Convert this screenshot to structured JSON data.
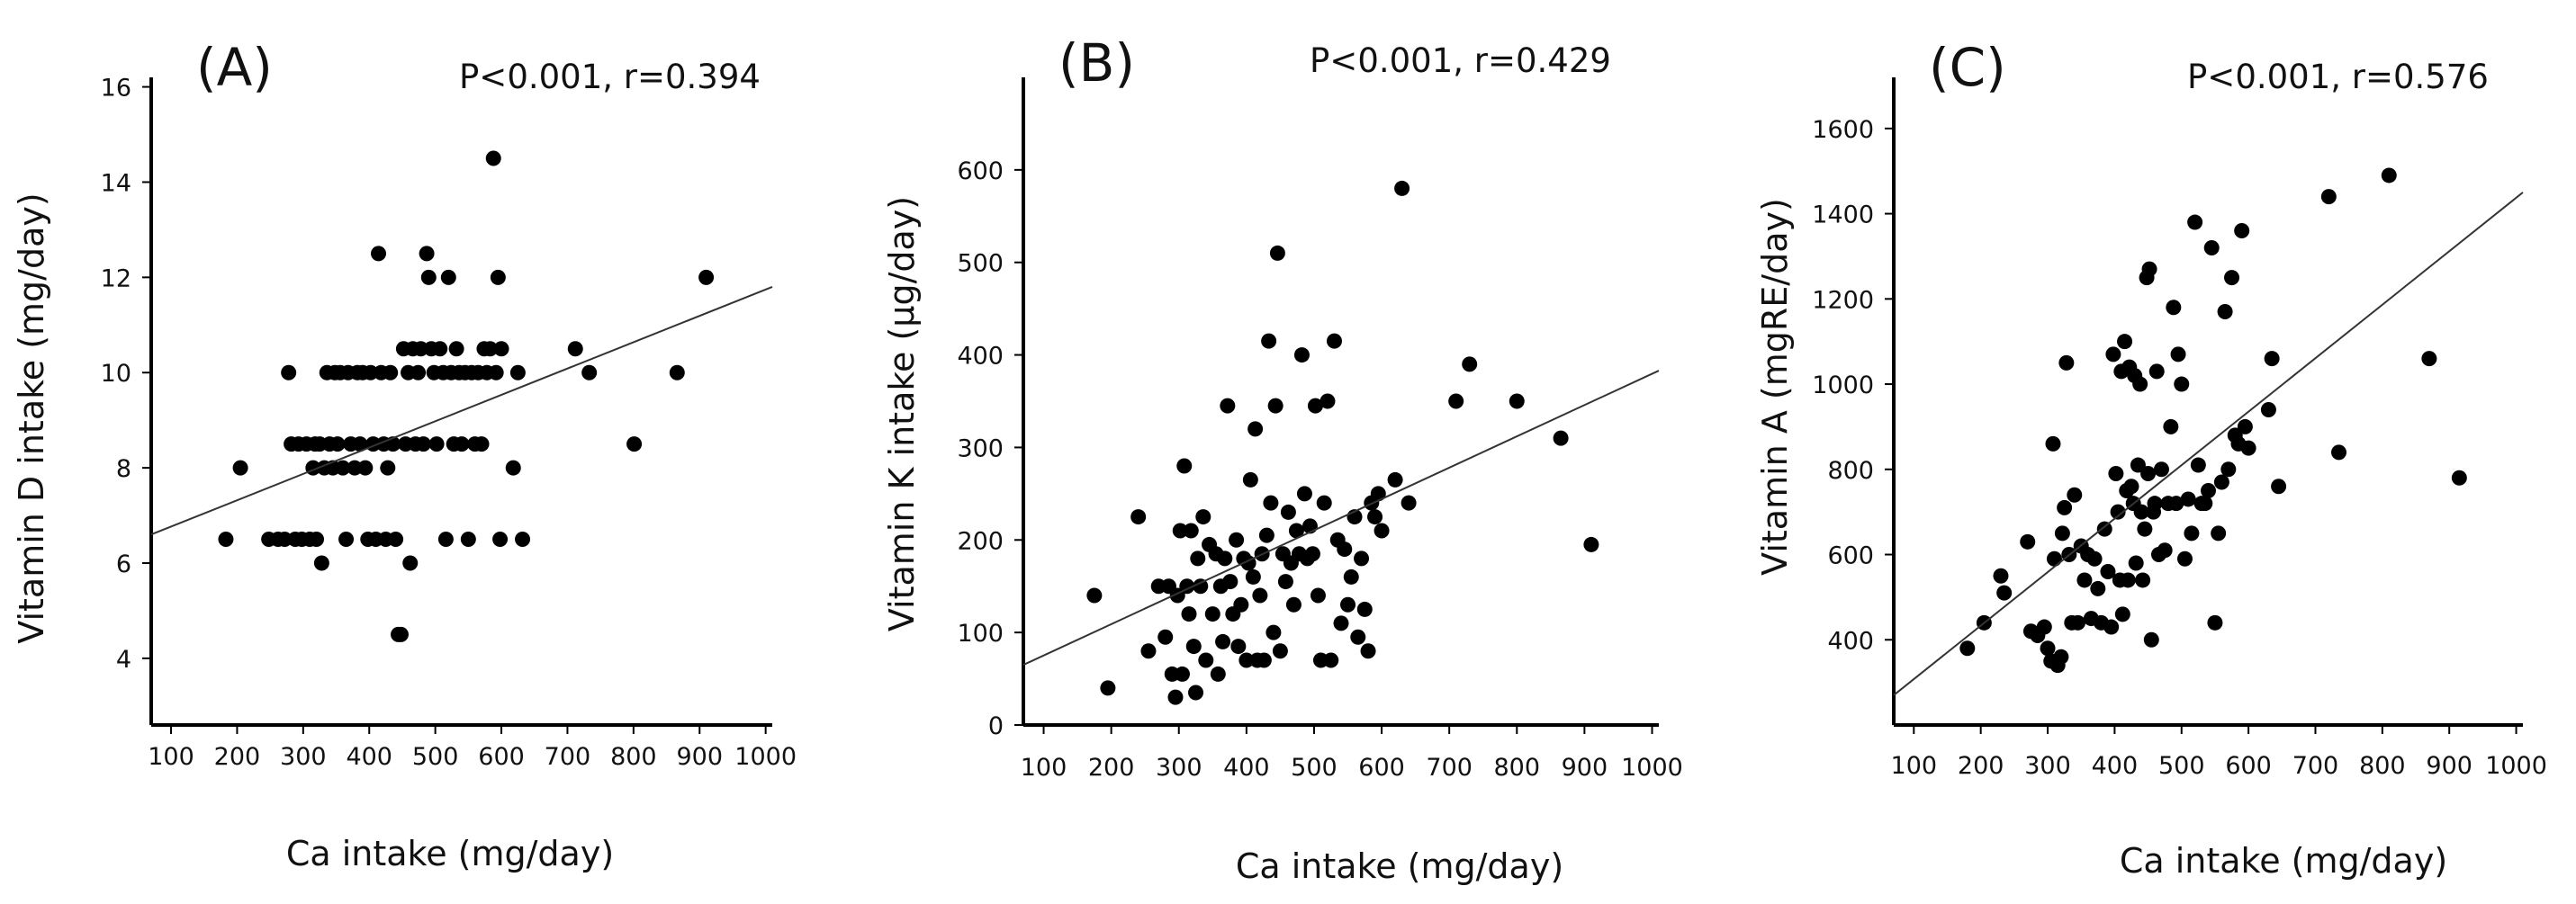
{
  "figure": {
    "background": "#ffffff",
    "ink_color": "#000000",
    "panels": [
      "A",
      "B",
      "C"
    ]
  },
  "chart_data": [
    {
      "type": "scatter",
      "panel": "(A)",
      "stat_text": "P<0.001, r=0.394",
      "xlabel": "Ca intake (mg/day)",
      "ylabel": "Vitamin D intake (mg/day)",
      "xlim": [
        70,
        1010
      ],
      "ylim": [
        2.6,
        16.2
      ],
      "xticks": [
        100,
        200,
        300,
        400,
        500,
        600,
        700,
        800,
        900,
        1000
      ],
      "yticks": [
        4,
        6,
        8,
        10,
        12,
        14,
        16
      ],
      "trendline": {
        "x": [
          70,
          1010
        ],
        "y": [
          6.6,
          11.8
        ]
      },
      "points": [
        [
          183,
          6.5
        ],
        [
          205,
          8.0
        ],
        [
          248,
          6.5
        ],
        [
          262,
          6.5
        ],
        [
          272,
          6.5
        ],
        [
          278,
          10.0
        ],
        [
          282,
          8.5
        ],
        [
          288,
          6.5
        ],
        [
          293,
          8.5
        ],
        [
          298,
          6.5
        ],
        [
          305,
          8.5
        ],
        [
          310,
          6.5
        ],
        [
          315,
          8.0
        ],
        [
          318,
          8.5
        ],
        [
          320,
          6.5
        ],
        [
          325,
          8.5
        ],
        [
          328,
          6.0
        ],
        [
          332,
          8.0
        ],
        [
          336,
          10.0
        ],
        [
          340,
          8.5
        ],
        [
          345,
          8.0
        ],
        [
          348,
          10.0
        ],
        [
          352,
          8.5
        ],
        [
          356,
          10.0
        ],
        [
          360,
          8.0
        ],
        [
          365,
          6.5
        ],
        [
          368,
          10.0
        ],
        [
          372,
          8.5
        ],
        [
          378,
          8.0
        ],
        [
          382,
          10.0
        ],
        [
          386,
          8.5
        ],
        [
          390,
          10.0
        ],
        [
          394,
          8.0
        ],
        [
          398,
          6.5
        ],
        [
          402,
          10.0
        ],
        [
          406,
          8.5
        ],
        [
          410,
          6.5
        ],
        [
          414,
          12.5
        ],
        [
          418,
          10.0
        ],
        [
          422,
          8.5
        ],
        [
          425,
          6.5
        ],
        [
          428,
          8.0
        ],
        [
          432,
          10.0
        ],
        [
          436,
          8.5
        ],
        [
          440,
          6.5
        ],
        [
          444,
          4.5
        ],
        [
          448,
          4.5
        ],
        [
          452,
          10.5
        ],
        [
          455,
          8.5
        ],
        [
          459,
          10.0
        ],
        [
          462,
          6.0
        ],
        [
          466,
          10.5
        ],
        [
          470,
          8.5
        ],
        [
          474,
          10.0
        ],
        [
          478,
          10.5
        ],
        [
          482,
          8.5
        ],
        [
          487,
          12.5
        ],
        [
          490,
          12.0
        ],
        [
          494,
          10.5
        ],
        [
          498,
          10.0
        ],
        [
          502,
          8.5
        ],
        [
          507,
          10.5
        ],
        [
          512,
          10.0
        ],
        [
          516,
          6.5
        ],
        [
          520,
          12.0
        ],
        [
          524,
          10.0
        ],
        [
          528,
          8.5
        ],
        [
          532,
          10.5
        ],
        [
          536,
          10.0
        ],
        [
          540,
          8.5
        ],
        [
          545,
          10.0
        ],
        [
          550,
          6.5
        ],
        [
          555,
          10.0
        ],
        [
          560,
          8.5
        ],
        [
          565,
          10.0
        ],
        [
          570,
          8.5
        ],
        [
          574,
          10.5
        ],
        [
          578,
          10.0
        ],
        [
          583,
          10.5
        ],
        [
          588,
          14.5
        ],
        [
          592,
          10.0
        ],
        [
          595,
          12.0
        ],
        [
          598,
          6.5
        ],
        [
          600,
          10.5
        ],
        [
          618,
          8.0
        ],
        [
          625,
          10.0
        ],
        [
          632,
          6.5
        ],
        [
          712,
          10.5
        ],
        [
          733,
          10.0
        ],
        [
          801,
          8.5
        ],
        [
          866,
          10.0
        ],
        [
          910,
          12.0
        ]
      ]
    },
    {
      "type": "scatter",
      "panel": "(B)",
      "stat_text": "P<0.001, r=0.429",
      "xlabel": "Ca intake (mg/day)",
      "ylabel": "Vitamin K intake (μg/day)",
      "xlim": [
        70,
        1010
      ],
      "ylim": [
        0,
        700
      ],
      "xticks": [
        100,
        200,
        300,
        400,
        500,
        600,
        700,
        800,
        900,
        1000
      ],
      "yticks": [
        0,
        100,
        200,
        300,
        400,
        500,
        600
      ],
      "trendline": {
        "x": [
          70,
          1010
        ],
        "y": [
          65,
          383
        ]
      },
      "points": [
        [
          175,
          140
        ],
        [
          195,
          40
        ],
        [
          240,
          225
        ],
        [
          255,
          80
        ],
        [
          270,
          150
        ],
        [
          280,
          95
        ],
        [
          285,
          150
        ],
        [
          290,
          55
        ],
        [
          295,
          30
        ],
        [
          298,
          140
        ],
        [
          302,
          210
        ],
        [
          305,
          55
        ],
        [
          308,
          280
        ],
        [
          312,
          150
        ],
        [
          315,
          120
        ],
        [
          318,
          210
        ],
        [
          322,
          85
        ],
        [
          325,
          35
        ],
        [
          328,
          180
        ],
        [
          332,
          150
        ],
        [
          336,
          225
        ],
        [
          340,
          70
        ],
        [
          345,
          195
        ],
        [
          350,
          120
        ],
        [
          355,
          185
        ],
        [
          358,
          55
        ],
        [
          362,
          150
        ],
        [
          365,
          90
        ],
        [
          368,
          180
        ],
        [
          372,
          345
        ],
        [
          376,
          155
        ],
        [
          380,
          120
        ],
        [
          385,
          200
        ],
        [
          388,
          85
        ],
        [
          392,
          130
        ],
        [
          396,
          180
        ],
        [
          400,
          70
        ],
        [
          403,
          175
        ],
        [
          406,
          265
        ],
        [
          410,
          160
        ],
        [
          413,
          320
        ],
        [
          416,
          70
        ],
        [
          420,
          140
        ],
        [
          423,
          185
        ],
        [
          426,
          70
        ],
        [
          430,
          205
        ],
        [
          433,
          415
        ],
        [
          436,
          240
        ],
        [
          440,
          100
        ],
        [
          443,
          345
        ],
        [
          446,
          510
        ],
        [
          450,
          80
        ],
        [
          454,
          185
        ],
        [
          458,
          155
        ],
        [
          462,
          230
        ],
        [
          466,
          175
        ],
        [
          470,
          130
        ],
        [
          474,
          210
        ],
        [
          478,
          185
        ],
        [
          482,
          400
        ],
        [
          486,
          250
        ],
        [
          490,
          180
        ],
        [
          494,
          215
        ],
        [
          498,
          185
        ],
        [
          502,
          345
        ],
        [
          506,
          140
        ],
        [
          510,
          70
        ],
        [
          515,
          240
        ],
        [
          520,
          350
        ],
        [
          525,
          70
        ],
        [
          530,
          415
        ],
        [
          535,
          200
        ],
        [
          540,
          110
        ],
        [
          545,
          190
        ],
        [
          550,
          130
        ],
        [
          555,
          160
        ],
        [
          560,
          225
        ],
        [
          565,
          95
        ],
        [
          570,
          180
        ],
        [
          575,
          125
        ],
        [
          580,
          80
        ],
        [
          585,
          240
        ],
        [
          590,
          225
        ],
        [
          595,
          250
        ],
        [
          600,
          210
        ],
        [
          620,
          265
        ],
        [
          630,
          580
        ],
        [
          640,
          240
        ],
        [
          710,
          350
        ],
        [
          730,
          390
        ],
        [
          800,
          350
        ],
        [
          865,
          310
        ],
        [
          910,
          195
        ]
      ]
    },
    {
      "type": "scatter",
      "panel": "(C)",
      "stat_text": "P<0.001, r=0.576",
      "xlabel": "Ca intake (mg/day)",
      "ylabel": "Vitamin A (mgRE/day)",
      "xlim": [
        70,
        1010
      ],
      "ylim": [
        200,
        1720
      ],
      "xticks": [
        100,
        200,
        300,
        400,
        500,
        600,
        700,
        800,
        900,
        1000
      ],
      "yticks": [
        400,
        600,
        800,
        1000,
        1200,
        1400,
        1600
      ],
      "trendline": {
        "x": [
          70,
          1010
        ],
        "y": [
          270,
          1450
        ]
      },
      "points": [
        [
          180,
          380
        ],
        [
          205,
          440
        ],
        [
          230,
          550
        ],
        [
          235,
          510
        ],
        [
          270,
          630
        ],
        [
          275,
          420
        ],
        [
          285,
          410
        ],
        [
          295,
          430
        ],
        [
          300,
          380
        ],
        [
          305,
          350
        ],
        [
          308,
          860
        ],
        [
          310,
          590
        ],
        [
          315,
          340
        ],
        [
          320,
          360
        ],
        [
          322,
          650
        ],
        [
          325,
          710
        ],
        [
          328,
          1050
        ],
        [
          332,
          600
        ],
        [
          336,
          440
        ],
        [
          340,
          740
        ],
        [
          345,
          440
        ],
        [
          350,
          620
        ],
        [
          355,
          540
        ],
        [
          360,
          600
        ],
        [
          365,
          450
        ],
        [
          370,
          590
        ],
        [
          375,
          520
        ],
        [
          380,
          440
        ],
        [
          385,
          660
        ],
        [
          390,
          560
        ],
        [
          395,
          430
        ],
        [
          398,
          1070
        ],
        [
          402,
          790
        ],
        [
          405,
          700
        ],
        [
          408,
          540
        ],
        [
          410,
          1030
        ],
        [
          412,
          460
        ],
        [
          415,
          1100
        ],
        [
          418,
          750
        ],
        [
          420,
          540
        ],
        [
          422,
          1040
        ],
        [
          425,
          760
        ],
        [
          428,
          720
        ],
        [
          430,
          1020
        ],
        [
          432,
          580
        ],
        [
          435,
          810
        ],
        [
          438,
          1000
        ],
        [
          440,
          700
        ],
        [
          442,
          540
        ],
        [
          445,
          660
        ],
        [
          448,
          1250
        ],
        [
          450,
          790
        ],
        [
          452,
          1270
        ],
        [
          455,
          400
        ],
        [
          458,
          700
        ],
        [
          460,
          720
        ],
        [
          463,
          1030
        ],
        [
          466,
          600
        ],
        [
          470,
          800
        ],
        [
          475,
          610
        ],
        [
          480,
          720
        ],
        [
          484,
          900
        ],
        [
          488,
          1180
        ],
        [
          492,
          720
        ],
        [
          495,
          1070
        ],
        [
          500,
          1000
        ],
        [
          505,
          590
        ],
        [
          510,
          730
        ],
        [
          515,
          650
        ],
        [
          520,
          1380
        ],
        [
          525,
          810
        ],
        [
          530,
          720
        ],
        [
          535,
          720
        ],
        [
          540,
          750
        ],
        [
          545,
          1320
        ],
        [
          550,
          440
        ],
        [
          555,
          650
        ],
        [
          560,
          770
        ],
        [
          565,
          1170
        ],
        [
          570,
          800
        ],
        [
          575,
          1250
        ],
        [
          580,
          880
        ],
        [
          585,
          860
        ],
        [
          590,
          1360
        ],
        [
          595,
          900
        ],
        [
          600,
          850
        ],
        [
          630,
          940
        ],
        [
          635,
          1060
        ],
        [
          645,
          760
        ],
        [
          720,
          1440
        ],
        [
          735,
          840
        ],
        [
          810,
          1490
        ],
        [
          870,
          1060
        ],
        [
          915,
          780
        ]
      ]
    }
  ]
}
